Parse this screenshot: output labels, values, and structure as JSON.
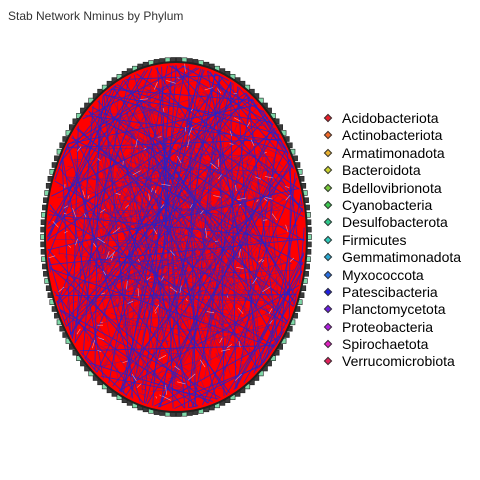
{
  "title": "Stab Network Nminus by Phylum",
  "colors": {
    "node_fill": "#ff0000",
    "edge": "#2222cc",
    "border": "#222222",
    "node_ring_light": "#7fd8a8",
    "node_ring_dark": "#3a3a3a"
  },
  "legend": {
    "items": [
      {
        "label": "Acidobacteriota",
        "color": "#e8202a"
      },
      {
        "label": "Actinobacteriota",
        "color": "#f06a2a"
      },
      {
        "label": "Armatimonadota",
        "color": "#e8b030"
      },
      {
        "label": "Bacteroidota",
        "color": "#c8d030"
      },
      {
        "label": "Bdellovibrionota",
        "color": "#78c83a"
      },
      {
        "label": "Cyanobacteria",
        "color": "#3ec850"
      },
      {
        "label": "Desulfobacterota",
        "color": "#2ec88a"
      },
      {
        "label": "Firmicutes",
        "color": "#2ec8b8"
      },
      {
        "label": "Gemmatimonadota",
        "color": "#2aa8d0"
      },
      {
        "label": "Myxococcota",
        "color": "#2a70e0"
      },
      {
        "label": "Patescibacteria",
        "color": "#2020e0"
      },
      {
        "label": "Planctomycetota",
        "color": "#6a20e0"
      },
      {
        "label": "Proteobacteria",
        "color": "#b020e0"
      },
      {
        "label": "Spirochaetota",
        "color": "#e020c0"
      },
      {
        "label": "Verrucomicrobiota",
        "color": "#e0205a"
      }
    ]
  }
}
